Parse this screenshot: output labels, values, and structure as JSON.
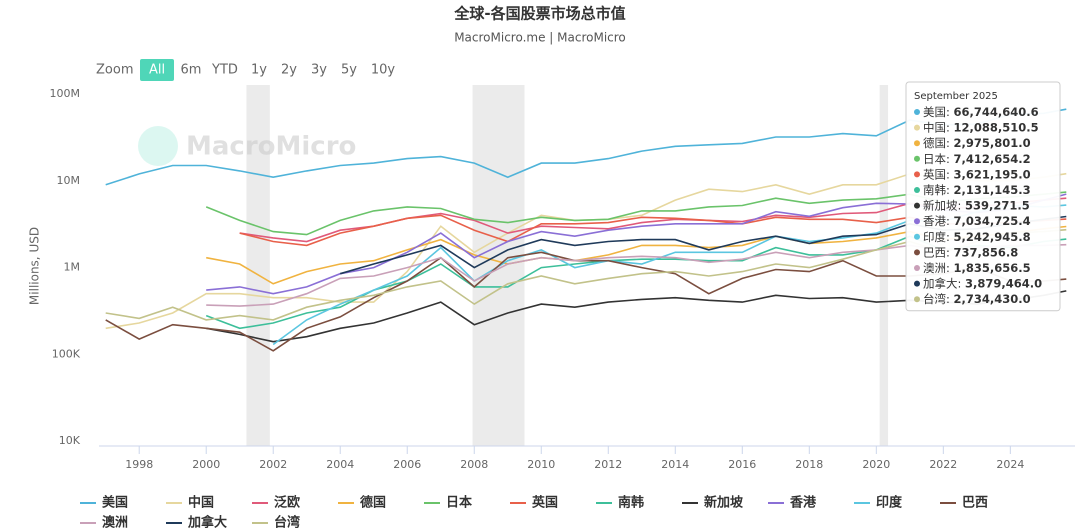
{
  "chart_data": {
    "type": "line",
    "title": "全球-各国股票市场总市值",
    "subtitle": "MacroMicro.me | MacroMicro",
    "watermark": "MacroMicro",
    "range_selector": {
      "label": "Zoom",
      "buttons": [
        "All",
        "6m",
        "YTD",
        "1y",
        "2y",
        "3y",
        "5y",
        "10y"
      ],
      "active": 0
    },
    "y_label": "Millions, USD",
    "log_y": true,
    "xlim": [
      1996.8,
      2025.93
    ],
    "xticks": [
      1998,
      2000,
      2002,
      2004,
      2006,
      2008,
      2010,
      2012,
      2014,
      2016,
      2018,
      2020,
      2022,
      2024
    ],
    "ylim": [
      8800,
      127000000
    ],
    "yticks": [
      {
        "value": 10000,
        "label": "10K"
      },
      {
        "value": 100000,
        "label": "100K"
      },
      {
        "value": 1000000,
        "label": "1M"
      },
      {
        "value": 10000000,
        "label": "10M"
      },
      {
        "value": 100000000,
        "label": "100M"
      }
    ],
    "bands": [
      [
        2001.2,
        2001.9
      ],
      [
        2007.95,
        2009.5
      ],
      [
        2020.1,
        2020.35
      ]
    ],
    "tooltip_title": "September 2025",
    "x": [
      1997,
      1998,
      1999,
      2000,
      2001,
      2002,
      2003,
      2004,
      2005,
      2006,
      2007,
      2008,
      2009,
      2010,
      2011,
      2012,
      2013,
      2014,
      2015,
      2016,
      2017,
      2018,
      2019,
      2020,
      2021,
      2022,
      2023,
      2024,
      2025,
      2025.67
    ],
    "series": [
      {
        "name": "美国",
        "color": "#4fb3d9",
        "values": [
          9000000,
          12000000,
          15000000,
          15000000,
          13000000,
          11000000,
          13000000,
          15000000,
          16000000,
          18000000,
          19000000,
          16000000,
          11000000,
          16000000,
          16000000,
          18000000,
          22000000,
          25000000,
          26000000,
          27000000,
          32000000,
          32000000,
          35000000,
          33000000,
          50000000,
          44000000,
          45000000,
          58000000,
          60000000,
          66744640.6
        ],
        "value_labels": [
          null,
          null,
          null,
          null,
          null,
          null,
          null,
          null,
          null,
          null,
          null,
          null,
          null,
          null,
          null,
          null,
          null,
          null,
          null,
          null,
          null,
          null,
          null,
          null,
          null,
          null,
          null,
          null,
          null,
          "66,744,640.6"
        ]
      },
      {
        "name": "中国",
        "color": "#e6d79e",
        "values": [
          200000,
          230000,
          300000,
          500000,
          500000,
          450000,
          450000,
          400000,
          400000,
          900000,
          3000000,
          1500000,
          2500000,
          4000000,
          3500000,
          3600000,
          4000000,
          6000000,
          8000000,
          7500000,
          9000000,
          7000000,
          9000000,
          9000000,
          12000000,
          11000000,
          10000000,
          10000000,
          11000000,
          12088510.5
        ],
        "value_labels": [
          null,
          null,
          null,
          null,
          null,
          null,
          null,
          null,
          null,
          null,
          null,
          null,
          null,
          null,
          null,
          null,
          null,
          null,
          null,
          null,
          null,
          null,
          null,
          null,
          null,
          null,
          null,
          null,
          null,
          "12,088,510.5"
        ]
      },
      {
        "name": "泛欧",
        "color": "#e05a7a",
        "values": [
          null,
          null,
          null,
          null,
          2500000,
          2200000,
          2000000,
          2700000,
          3000000,
          3700000,
          4200000,
          3500000,
          2500000,
          3000000,
          2900000,
          2800000,
          3300000,
          3600000,
          3500000,
          3400000,
          4000000,
          3800000,
          4200000,
          4300000,
          5500000,
          4800000,
          5000000,
          5500000,
          6000000,
          6300000
        ]
      },
      {
        "name": "德国",
        "color": "#f0b340",
        "values": [
          null,
          null,
          null,
          1300000,
          1100000,
          650000,
          900000,
          1100000,
          1200000,
          1600000,
          2100000,
          1400000,
          1100000,
          1300000,
          1200000,
          1400000,
          1800000,
          1800000,
          1700000,
          1800000,
          2300000,
          1900000,
          2000000,
          2200000,
          2600000,
          2100000,
          2300000,
          2500000,
          2800000,
          2975801.0
        ],
        "value_labels": [
          null,
          null,
          null,
          null,
          null,
          null,
          null,
          null,
          null,
          null,
          null,
          null,
          null,
          null,
          null,
          null,
          null,
          null,
          null,
          null,
          null,
          null,
          null,
          null,
          null,
          null,
          null,
          null,
          null,
          "2,975,801.0"
        ]
      },
      {
        "name": "日本",
        "color": "#6ac36a",
        "values": [
          null,
          null,
          null,
          5000000,
          3500000,
          2600000,
          2400000,
          3500000,
          4500000,
          5000000,
          4800000,
          3600000,
          3300000,
          3800000,
          3500000,
          3600000,
          4500000,
          4500000,
          5000000,
          5200000,
          6300000,
          5500000,
          6000000,
          6200000,
          7000000,
          5700000,
          6200000,
          6500000,
          7000000,
          7412654.2
        ],
        "value_labels": [
          null,
          null,
          null,
          null,
          null,
          null,
          null,
          null,
          null,
          null,
          null,
          null,
          null,
          null,
          null,
          null,
          null,
          null,
          null,
          null,
          null,
          null,
          null,
          null,
          null,
          null,
          null,
          null,
          null,
          "7,412,654.2"
        ]
      },
      {
        "name": "英国",
        "color": "#e8604a",
        "values": [
          null,
          null,
          null,
          null,
          2500000,
          2000000,
          1800000,
          2500000,
          3000000,
          3700000,
          4000000,
          2700000,
          2000000,
          3200000,
          3200000,
          3300000,
          3800000,
          3700000,
          3500000,
          3200000,
          3800000,
          3600000,
          3600000,
          3300000,
          3800000,
          3200000,
          3200000,
          3300000,
          3500000,
          3621195.0
        ],
        "value_labels": [
          null,
          null,
          null,
          null,
          null,
          null,
          null,
          null,
          null,
          null,
          null,
          null,
          null,
          null,
          null,
          null,
          null,
          null,
          null,
          null,
          null,
          null,
          null,
          null,
          null,
          null,
          null,
          null,
          null,
          "3,621,195.0"
        ]
      },
      {
        "name": "南韩",
        "color": "#3dbf9a",
        "values": [
          null,
          null,
          null,
          280000,
          200000,
          230000,
          300000,
          350000,
          550000,
          700000,
          1100000,
          600000,
          600000,
          1000000,
          1100000,
          1200000,
          1250000,
          1250000,
          1200000,
          1200000,
          1700000,
          1400000,
          1400000,
          1600000,
          2300000,
          1600000,
          1800000,
          1700000,
          2000000,
          2131145.3
        ],
        "value_labels": [
          null,
          null,
          null,
          null,
          null,
          null,
          null,
          null,
          null,
          null,
          null,
          null,
          null,
          null,
          null,
          null,
          null,
          null,
          null,
          null,
          null,
          null,
          null,
          null,
          null,
          null,
          null,
          null,
          null,
          "2,131,145.3"
        ]
      },
      {
        "name": "新加坡",
        "color": "#333333",
        "values": [
          null,
          null,
          null,
          200000,
          170000,
          140000,
          160000,
          200000,
          230000,
          300000,
          400000,
          220000,
          300000,
          380000,
          350000,
          400000,
          430000,
          450000,
          420000,
          400000,
          480000,
          440000,
          450000,
          400000,
          420000,
          400000,
          380000,
          420000,
          480000,
          539271.5
        ],
        "value_labels": [
          null,
          null,
          null,
          null,
          null,
          null,
          null,
          null,
          null,
          null,
          null,
          null,
          null,
          null,
          null,
          null,
          null,
          null,
          null,
          null,
          null,
          null,
          null,
          null,
          null,
          null,
          null,
          null,
          null,
          "539,271.5"
        ]
      },
      {
        "name": "香港",
        "color": "#8a6fd6",
        "values": [
          null,
          null,
          null,
          550000,
          600000,
          500000,
          600000,
          850000,
          1000000,
          1500000,
          2500000,
          1300000,
          2000000,
          2600000,
          2300000,
          2700000,
          3000000,
          3200000,
          3200000,
          3200000,
          4400000,
          3900000,
          4900000,
          5500000,
          5400000,
          4600000,
          4300000,
          4700000,
          6000000,
          7034725.4
        ],
        "value_labels": [
          null,
          null,
          null,
          null,
          null,
          null,
          null,
          null,
          null,
          null,
          null,
          null,
          null,
          null,
          null,
          null,
          null,
          null,
          null,
          null,
          null,
          null,
          null,
          null,
          null,
          null,
          null,
          null,
          null,
          "7,034,725.4"
        ]
      },
      {
        "name": "印度",
        "color": "#5bc6e0",
        "values": [
          null,
          null,
          null,
          null,
          null,
          130000,
          250000,
          380000,
          550000,
          800000,
          1700000,
          700000,
          1200000,
          1600000,
          1000000,
          1200000,
          1100000,
          1500000,
          1500000,
          1500000,
          2300000,
          2000000,
          2200000,
          2500000,
          3500000,
          3400000,
          4400000,
          5200000,
          5000000,
          5242945.8
        ],
        "value_labels": [
          null,
          null,
          null,
          null,
          null,
          null,
          null,
          null,
          null,
          null,
          null,
          null,
          null,
          null,
          null,
          null,
          null,
          null,
          null,
          null,
          null,
          null,
          null,
          null,
          null,
          null,
          null,
          null,
          null,
          "5,242,945.8"
        ]
      },
      {
        "name": "巴西",
        "color": "#7b4e3f",
        "values": [
          250000,
          150000,
          220000,
          200000,
          180000,
          110000,
          200000,
          270000,
          450000,
          700000,
          1300000,
          600000,
          1300000,
          1500000,
          1200000,
          1200000,
          1000000,
          850000,
          500000,
          750000,
          950000,
          900000,
          1200000,
          800000,
          800000,
          850000,
          1000000,
          700000,
          700000,
          737856.8
        ],
        "value_labels": [
          null,
          null,
          null,
          null,
          null,
          null,
          null,
          null,
          null,
          null,
          null,
          null,
          null,
          null,
          null,
          null,
          null,
          null,
          null,
          null,
          null,
          null,
          null,
          null,
          null,
          null,
          null,
          null,
          null,
          "737,856.8"
        ]
      },
      {
        "name": "澳洲",
        "color": "#c9a0b8",
        "values": [
          null,
          null,
          null,
          370000,
          360000,
          380000,
          500000,
          750000,
          800000,
          1000000,
          1300000,
          700000,
          1100000,
          1300000,
          1200000,
          1300000,
          1350000,
          1300000,
          1150000,
          1250000,
          1500000,
          1300000,
          1500000,
          1600000,
          1800000,
          1600000,
          1700000,
          1800000,
          1800000,
          1835656.5
        ],
        "value_labels": [
          null,
          null,
          null,
          null,
          null,
          null,
          null,
          null,
          null,
          null,
          null,
          null,
          null,
          null,
          null,
          null,
          null,
          null,
          null,
          null,
          null,
          null,
          null,
          null,
          null,
          null,
          null,
          null,
          null,
          "1,835,656.5"
        ]
      },
      {
        "name": "加拿大",
        "color": "#1f3a5a",
        "values": [
          null,
          null,
          null,
          null,
          null,
          null,
          null,
          850000,
          1100000,
          1400000,
          1800000,
          1000000,
          1600000,
          2100000,
          1800000,
          2000000,
          2100000,
          2100000,
          1600000,
          2000000,
          2300000,
          1900000,
          2300000,
          2400000,
          3200000,
          2700000,
          2800000,
          3200000,
          3600000,
          3879464.0
        ],
        "value_labels": [
          null,
          null,
          null,
          null,
          null,
          null,
          null,
          null,
          null,
          null,
          null,
          null,
          null,
          null,
          null,
          null,
          null,
          null,
          null,
          null,
          null,
          null,
          null,
          null,
          null,
          null,
          null,
          null,
          null,
          "3,879,464.0"
        ]
      },
      {
        "name": "台湾",
        "color": "#c2c28a",
        "values": [
          300000,
          260000,
          350000,
          250000,
          280000,
          250000,
          350000,
          420000,
          480000,
          600000,
          700000,
          380000,
          650000,
          800000,
          650000,
          750000,
          850000,
          900000,
          800000,
          900000,
          1100000,
          1000000,
          1250000,
          1600000,
          2000000,
          1500000,
          2000000,
          2500000,
          2600000,
          2734430.0
        ],
        "value_labels": [
          null,
          null,
          null,
          null,
          null,
          null,
          null,
          null,
          null,
          null,
          null,
          null,
          null,
          null,
          null,
          null,
          null,
          null,
          null,
          null,
          null,
          null,
          null,
          null,
          null,
          null,
          null,
          null,
          null,
          "2,734,430.0"
        ]
      }
    ]
  }
}
